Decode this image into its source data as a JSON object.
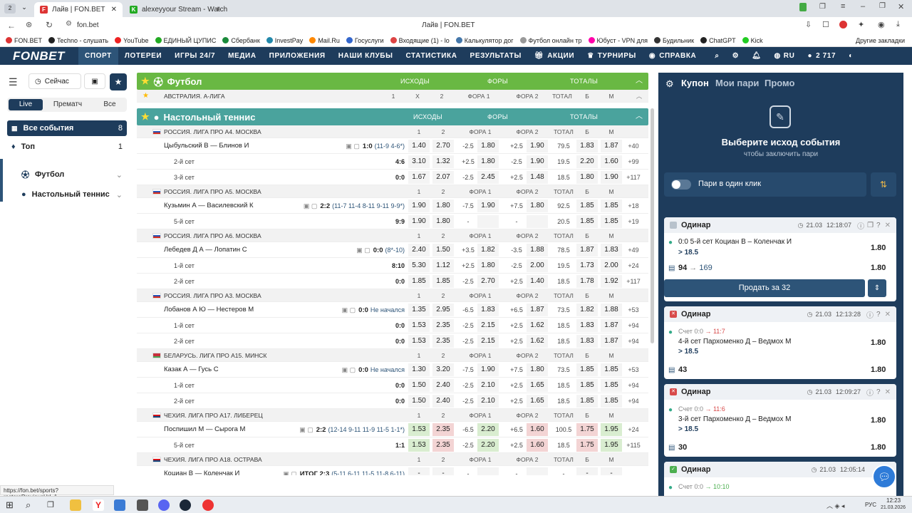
{
  "browser": {
    "tab_count": "2",
    "tabs": [
      {
        "title": "Лайв | FON.BET"
      },
      {
        "title": "alexeyyour Stream - Watch"
      }
    ],
    "address": "fon.bet",
    "page_title": "Лайв | FON.BET",
    "bookmarks": [
      "FON.BET",
      "Techno - слушать",
      "YouTube",
      "ЕДИНЫЙ ЦУПИС",
      "Сбербанк",
      "InvestPay",
      "Mail.Ru",
      "Госуслуги",
      "Входящие (1) - lo",
      "Калькулятор дог",
      "Футбол онлайн тр",
      "Юбуст - VPN для",
      "Будильник",
      "ChatGPT",
      "Kick"
    ],
    "other_bookmarks": "Другие закладки"
  },
  "nav": {
    "logo": "FONBET",
    "items": [
      "СПОРТ",
      "ЛОТЕРЕИ",
      "ИГРЫ 24/7",
      "МЕДИА",
      "ПРИЛОЖЕНИЯ",
      "НАШИ КЛУБЫ",
      "СТАТИСТИКА",
      "РЕЗУЛЬТАТЫ",
      "АКЦИИ",
      "ТУРНИРЫ",
      "СПРАВКА"
    ],
    "lang": "RU",
    "balance": "2 717"
  },
  "sidebar": {
    "now_label": "Сейчас",
    "filters": [
      "Live",
      "Прематч",
      "Все"
    ],
    "items": [
      {
        "label": "Все события",
        "count": "8"
      },
      {
        "label": "Топ",
        "count": "1"
      },
      {
        "label": "Футбол",
        "count": ""
      },
      {
        "label": "Настольный теннис",
        "count": ""
      }
    ]
  },
  "football": {
    "title": "Футбол",
    "cols": [
      "ИСХОДЫ",
      "ФОРЫ",
      "ТОТАЛЫ"
    ],
    "league": {
      "name": "АВСТРАЛИЯ. А-ЛИГА",
      "h": [
        "1",
        "X",
        "2",
        "ФОРА 1",
        "ФОРА 2",
        "ТОТАЛ",
        "Б",
        "М"
      ]
    }
  },
  "tennis": {
    "title": "Настольный теннис",
    "cols": [
      "ИСХОДЫ",
      "ФОРЫ",
      "ТОТАЛЫ"
    ],
    "col_headers": [
      "1",
      "2",
      "ФОРА 1",
      "ФОРА 2",
      "ТОТАЛ",
      "Б",
      "М"
    ],
    "blocks": [
      {
        "league": "РОССИЯ. ЛИГА ПРО А4. МОСКВА",
        "flag": "ru",
        "match": {
          "name": "Цыбульский В — Блинов И",
          "score": "1:0",
          "detail": "(11-9 4-6*)",
          "odds": [
            "1.40",
            "2.70",
            "-2.5",
            "1.80",
            "+2.5",
            "1.90",
            "79.5",
            "1.83",
            "1.87"
          ],
          "more": "+40"
        },
        "subs": [
          {
            "name": "2-й сет",
            "score": "4:6",
            "odds": [
              "3.10",
              "1.32",
              "+2.5",
              "1.80",
              "-2.5",
              "1.90",
              "19.5",
              "2.20",
              "1.60"
            ],
            "more": "+99"
          },
          {
            "name": "3-й сет",
            "score": "0:0",
            "odds": [
              "1.67",
              "2.07",
              "-2.5",
              "2.45",
              "+2.5",
              "1.48",
              "18.5",
              "1.80",
              "1.90"
            ],
            "more": "+117"
          }
        ]
      },
      {
        "league": "РОССИЯ. ЛИГА ПРО А5. МОСКВА",
        "flag": "ru",
        "match": {
          "name": "Кузьмин А — Василевский К",
          "score": "2:2",
          "detail": "(11-7 11-4 8-11 9-11 9-9*)",
          "odds": [
            "1.90",
            "1.80",
            "-7.5",
            "1.90",
            "+7.5",
            "1.80",
            "92.5",
            "1.85",
            "1.85"
          ],
          "more": "+18"
        },
        "subs": [
          {
            "name": "5-й сет",
            "score": "9:9",
            "odds": [
              "1.90",
              "1.80",
              "-",
              "",
              "-",
              "",
              "20.5",
              "1.85",
              "1.85"
            ],
            "more": "+19"
          }
        ]
      },
      {
        "league": "РОССИЯ. ЛИГА ПРО А6. МОСКВА",
        "flag": "ru",
        "match": {
          "name": "Лебедев Д А — Лопатин С",
          "score": "0:0",
          "detail": "(8*-10)",
          "odds": [
            "2.40",
            "1.50",
            "+3.5",
            "1.82",
            "-3.5",
            "1.88",
            "78.5",
            "1.87",
            "1.83"
          ],
          "more": "+49"
        },
        "subs": [
          {
            "name": "1-й сет",
            "score": "8:10",
            "odds": [
              "5.30",
              "1.12",
              "+2.5",
              "1.80",
              "-2.5",
              "2.00",
              "19.5",
              "1.73",
              "2.00"
            ],
            "more": "+24"
          },
          {
            "name": "2-й сет",
            "score": "0:0",
            "odds": [
              "1.85",
              "1.85",
              "-2.5",
              "2.70",
              "+2.5",
              "1.40",
              "18.5",
              "1.78",
              "1.92"
            ],
            "more": "+117"
          }
        ]
      },
      {
        "league": "РОССИЯ. ЛИГА ПРО А3. МОСКВА",
        "flag": "ru",
        "match": {
          "name": "Лобанов А Ю — Нестеров М",
          "score": "0:0",
          "detail": "Не начался",
          "odds": [
            "1.35",
            "2.95",
            "-6.5",
            "1.83",
            "+6.5",
            "1.87",
            "73.5",
            "1.82",
            "1.88"
          ],
          "more": "+53"
        },
        "subs": [
          {
            "name": "1-й сет",
            "score": "0:0",
            "odds": [
              "1.53",
              "2.35",
              "-2.5",
              "2.15",
              "+2.5",
              "1.62",
              "18.5",
              "1.83",
              "1.87"
            ],
            "more": "+94"
          },
          {
            "name": "2-й сет",
            "score": "0:0",
            "odds": [
              "1.53",
              "2.35",
              "-2.5",
              "2.15",
              "+2.5",
              "1.62",
              "18.5",
              "1.83",
              "1.87"
            ],
            "more": "+94"
          }
        ]
      },
      {
        "league": "БЕЛАРУСЬ. ЛИГА ПРО А15. МИНСК",
        "flag": "by",
        "match": {
          "name": "Казак А — Гусь С",
          "score": "0:0",
          "detail": "Не начался",
          "odds": [
            "1.30",
            "3.20",
            "-7.5",
            "1.90",
            "+7.5",
            "1.80",
            "73.5",
            "1.85",
            "1.85"
          ],
          "more": "+53"
        },
        "subs": [
          {
            "name": "1-й сет",
            "score": "0:0",
            "odds": [
              "1.50",
              "2.40",
              "-2.5",
              "2.10",
              "+2.5",
              "1.65",
              "18.5",
              "1.85",
              "1.85"
            ],
            "more": "+94"
          },
          {
            "name": "2-й сет",
            "score": "0:0",
            "odds": [
              "1.50",
              "2.40",
              "-2.5",
              "2.10",
              "+2.5",
              "1.65",
              "18.5",
              "1.85",
              "1.85"
            ],
            "more": "+94"
          }
        ]
      },
      {
        "league": "ЧЕХИЯ. ЛИГА ПРО А17. ЛИБЕРЕЦ",
        "flag": "cz",
        "match": {
          "name": "Поспишил М — Сырога М",
          "score": "2:2",
          "detail": "(12-14 9-11 11-9 11-5 1-1*)",
          "odds": [
            "1.53",
            "2.35",
            "-6.5",
            "2.20",
            "+6.5",
            "1.60",
            "100.5",
            "1.75",
            "1.95"
          ],
          "more": "+24",
          "colors": [
            "hi",
            "red",
            "",
            "hi",
            "",
            "red",
            "",
            "red",
            "hi"
          ]
        },
        "subs": [
          {
            "name": "5-й сет",
            "score": "1:1",
            "odds": [
              "1.53",
              "2.35",
              "-2.5",
              "2.20",
              "+2.5",
              "1.60",
              "18.5",
              "1.75",
              "1.95"
            ],
            "more": "+115",
            "colors": [
              "hi",
              "red",
              "",
              "hi",
              "",
              "red",
              "",
              "red",
              "hi"
            ]
          }
        ]
      },
      {
        "league": "ЧЕХИЯ. ЛИГА ПРО А18. ОСТРАВА",
        "flag": "cz",
        "match": {
          "name": "Коциан В — Коленчак И",
          "score": "ИТОГ 2:3",
          "detail": "(5-11 6-11 11-5 11-8 6-11)",
          "odds": [
            "-",
            "-",
            "-",
            "",
            "-",
            "",
            "-",
            "-",
            "-"
          ],
          "more": ""
        },
        "subs": []
      }
    ]
  },
  "coupon": {
    "tabs": [
      "Купон",
      "Мои пари",
      "Промо"
    ],
    "empty_title": "Выберите исход события",
    "empty_sub": "чтобы заключить пари",
    "one_click": "Пари в один клик",
    "bets": [
      {
        "type": "Одинар",
        "date": "21.03",
        "time": "12:18:07",
        "status": "pending",
        "line1": "0:0 5-й сет Коциан В – Коленчак И",
        "line2": "> 18.5",
        "odd": "1.80",
        "stake": "94",
        "payout": "169",
        "total_odd": "1.80",
        "sell": "Продать за 32"
      },
      {
        "type": "Одинар",
        "date": "21.03",
        "time": "12:13:28",
        "status": "lost",
        "score_prefix": "Счет",
        "score_from": "0:0",
        "score_to": "11:7",
        "line1": "4-й сет Пархоменко Д – Ведмох М",
        "line2": "> 18.5",
        "odd": "1.80",
        "stake": "43",
        "total_odd": "1.80"
      },
      {
        "type": "Одинар",
        "date": "21.03",
        "time": "12:09:27",
        "status": "lost",
        "score_prefix": "Счет",
        "score_from": "0:0",
        "score_to": "11:6",
        "line1": "3-й сет Пархоменко Д – Ведмох М",
        "line2": "> 18.5",
        "odd": "1.80",
        "stake": "30",
        "total_odd": "1.80"
      },
      {
        "type": "Одинар",
        "date": "21.03",
        "time": "12:05:14",
        "status": "won",
        "score_prefix": "Счет",
        "score_from": "0:0",
        "score_to": "10:10"
      }
    ]
  },
  "status_url": "https://fon.bet/sports?restorePreviousUrl=1",
  "taskbar": {
    "time": "12:23",
    "date": "21.03.2026",
    "lang": "РУС"
  },
  "colors": {
    "nav": "#1e3c5c",
    "football": "#69b843",
    "tennis": "#4aa39d",
    "accent": "#2d5478"
  }
}
